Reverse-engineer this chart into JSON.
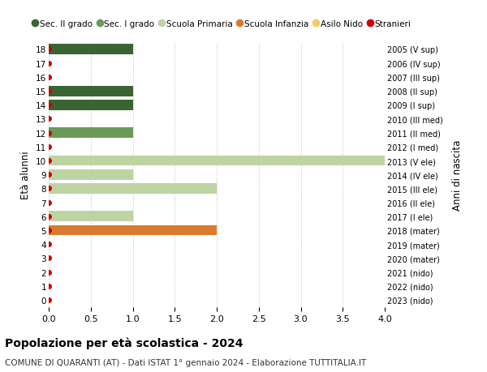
{
  "ages": [
    18,
    17,
    16,
    15,
    14,
    13,
    12,
    11,
    10,
    9,
    8,
    7,
    6,
    5,
    4,
    3,
    2,
    1,
    0
  ],
  "anni_nascita": [
    "2005 (V sup)",
    "2006 (IV sup)",
    "2007 (III sup)",
    "2008 (II sup)",
    "2009 (I sup)",
    "2010 (III med)",
    "2011 (II med)",
    "2012 (I med)",
    "2013 (V ele)",
    "2014 (IV ele)",
    "2015 (III ele)",
    "2016 (II ele)",
    "2017 (I ele)",
    "2018 (mater)",
    "2019 (mater)",
    "2020 (mater)",
    "2021 (nido)",
    "2022 (nido)",
    "2023 (nido)"
  ],
  "bar_data": [
    {
      "age": 18,
      "value": 1,
      "color": "#3a6432"
    },
    {
      "age": 17,
      "value": 0,
      "color": "#3a6432"
    },
    {
      "age": 16,
      "value": 0,
      "color": "#3a6432"
    },
    {
      "age": 15,
      "value": 1,
      "color": "#3a6432"
    },
    {
      "age": 14,
      "value": 1,
      "color": "#3a6432"
    },
    {
      "age": 13,
      "value": 0,
      "color": "#6a9a58"
    },
    {
      "age": 12,
      "value": 1,
      "color": "#6a9a58"
    },
    {
      "age": 11,
      "value": 0,
      "color": "#6a9a58"
    },
    {
      "age": 10,
      "value": 4,
      "color": "#bdd4a2"
    },
    {
      "age": 9,
      "value": 1,
      "color": "#bdd4a2"
    },
    {
      "age": 8,
      "value": 2,
      "color": "#bdd4a2"
    },
    {
      "age": 7,
      "value": 0,
      "color": "#bdd4a2"
    },
    {
      "age": 6,
      "value": 1,
      "color": "#bdd4a2"
    },
    {
      "age": 5,
      "value": 2,
      "color": "#d97b2e"
    },
    {
      "age": 4,
      "value": 0,
      "color": "#d97b2e"
    },
    {
      "age": 3,
      "value": 0,
      "color": "#d97b2e"
    },
    {
      "age": 2,
      "value": 0,
      "color": "#f0cc6a"
    },
    {
      "age": 1,
      "value": 0,
      "color": "#f0cc6a"
    },
    {
      "age": 0,
      "value": 0,
      "color": "#f0cc6a"
    }
  ],
  "stranieri_dots": [
    18,
    17,
    16,
    15,
    14,
    13,
    12,
    11,
    10,
    9,
    8,
    7,
    6,
    5,
    4,
    3,
    2,
    1,
    0
  ],
  "legend_labels": [
    "Sec. II grado",
    "Sec. I grado",
    "Scuola Primaria",
    "Scuola Infanzia",
    "Asilo Nido",
    "Stranieri"
  ],
  "legend_colors": [
    "#3a6432",
    "#6a9a58",
    "#bdd4a2",
    "#d97b2e",
    "#f0cc6a",
    "#cc0000"
  ],
  "title": "Popolazione per età scolastica - 2024",
  "subtitle": "COMUNE DI QUARANTI (AT) - Dati ISTAT 1° gennaio 2024 - Elaborazione TUTTITALIA.IT",
  "ylabel_left": "Età alunni",
  "ylabel_right": "Anni di nascita",
  "xlim": [
    0,
    4.0
  ],
  "bar_height": 0.75,
  "background_color": "#ffffff",
  "grid_color": "#cccccc",
  "dot_color": "#cc0000",
  "dot_size": 4.0
}
